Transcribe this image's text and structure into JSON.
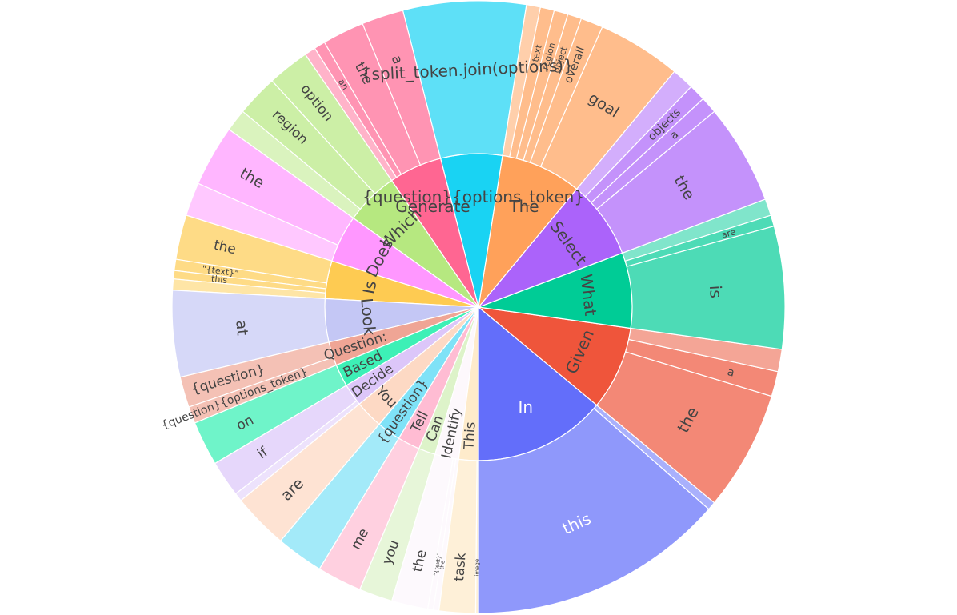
{
  "chart_data": {
    "type": "sunburst",
    "title": "",
    "inner": [
      {
        "label": "In",
        "value": 9.5,
        "color": "#636EFA",
        "text": "#ffffff",
        "children": [
          {
            "label": "this",
            "value": 9.2,
            "color": "#8F98FB"
          },
          {
            "label": "",
            "value": 0.3,
            "color": "#A9B0FC"
          }
        ]
      },
      {
        "label": "Given",
        "value": 6.0,
        "color": "#EF553B",
        "children": [
          {
            "label": "the",
            "value": 4.3,
            "color": "#F38876"
          },
          {
            "label": "a",
            "value": 0.9,
            "color": "#F38876"
          },
          {
            "label": "",
            "value": 0.8,
            "color": "#F4A596"
          }
        ]
      },
      {
        "label": "What",
        "value": 5.4,
        "color": "#00CC96",
        "children": [
          {
            "label": "is",
            "value": 4.4,
            "color": "#4DDBB6"
          },
          {
            "label": "are",
            "value": 0.4,
            "color": "#4DDBB6"
          },
          {
            "label": "",
            "value": 0.6,
            "color": "#80E5CB"
          }
        ]
      },
      {
        "label": "Select",
        "value": 5.6,
        "color": "#AB63FA",
        "children": [
          {
            "label": "the",
            "value": 3.6,
            "color": "#C492FB"
          },
          {
            "label": "a",
            "value": 0.6,
            "color": "#C492FB"
          },
          {
            "label": "objects",
            "value": 0.6,
            "color": "#C492FB"
          },
          {
            "label": "",
            "value": 0.8,
            "color": "#D3AEFC"
          }
        ]
      },
      {
        "label": "The",
        "value": 5.8,
        "color": "#FFA15A",
        "children": [
          {
            "label": "goal",
            "value": 3.0,
            "color": "#FFBD8C"
          },
          {
            "label": "overall",
            "value": 0.8,
            "color": "#FFBD8C"
          },
          {
            "label": "object",
            "value": 0.5,
            "color": "#FFBD8C"
          },
          {
            "label": "region",
            "value": 0.5,
            "color": "#FFBD8C"
          },
          {
            "label": "text",
            "value": 0.5,
            "color": "#FFBD8C"
          },
          {
            "label": "",
            "value": 0.5,
            "color": "#FFCFAB"
          }
        ]
      },
      {
        "label": "{question}{options_token}",
        "value": 4.4,
        "color": "#19D3F3",
        "children": [
          {
            "label": "{split_token.join(options)}",
            "value": 4.4,
            "color": "#5EE0F7"
          }
        ]
      },
      {
        "label": "Generate",
        "value": 3.8,
        "color": "#FF6692",
        "children": [
          {
            "label": "a",
            "value": 1.5,
            "color": "#FF94B3"
          },
          {
            "label": "the",
            "value": 1.5,
            "color": "#FF94B3"
          },
          {
            "label": "an",
            "value": 0.4,
            "color": "#FF94B3"
          },
          {
            "label": "",
            "value": 0.4,
            "color": "#FFB3C9"
          }
        ]
      },
      {
        "label": "Which",
        "value": 3.8,
        "color": "#B6E880",
        "children": [
          {
            "label": "option",
            "value": 1.5,
            "color": "#CCEFA6"
          },
          {
            "label": "region",
            "value": 1.5,
            "color": "#CCEFA6"
          },
          {
            "label": "",
            "value": 0.8,
            "color": "#DAF3BE"
          }
        ]
      },
      {
        "label": "Does",
        "value": 3.4,
        "color": "#FF97FF",
        "children": [
          {
            "label": "the",
            "value": 2.2,
            "color": "#FFB6FF"
          },
          {
            "label": "",
            "value": 1.2,
            "color": "#FFC8FF"
          }
        ]
      },
      {
        "label": "Is",
        "value": 2.7,
        "color": "#FECB52",
        "children": [
          {
            "label": "the",
            "value": 1.6,
            "color": "#FEDB86"
          },
          {
            "label": "\"{text}\"",
            "value": 0.4,
            "color": "#FEDB86"
          },
          {
            "label": "this",
            "value": 0.3,
            "color": "#FEDB86"
          },
          {
            "label": "",
            "value": 0.4,
            "color": "#FEE5A6"
          }
        ]
      },
      {
        "label": "Look",
        "value": 3.1,
        "color": "#C4C7F5",
        "children": [
          {
            "label": "at",
            "value": 3.1,
            "color": "#D6D8F8"
          }
        ]
      },
      {
        "label": "Question:",
        "value": 1.7,
        "color": "#EFA595",
        "children": [
          {
            "label": "{question}",
            "value": 1.1,
            "color": "#F4C1B5"
          },
          {
            "label": "{question}{options_token}",
            "value": 0.6,
            "color": "#F4C1B5"
          }
        ]
      },
      {
        "label": "Based",
        "value": 1.6,
        "color": "#3DF0B6",
        "children": [
          {
            "label": "on",
            "value": 1.6,
            "color": "#6FF4C9"
          }
        ]
      },
      {
        "label": "Decide",
        "value": 1.6,
        "color": "#DCC6F9",
        "children": [
          {
            "label": "if",
            "value": 1.3,
            "color": "#E6D7FB"
          },
          {
            "label": "",
            "value": 0.3,
            "color": "#EDE2FC"
          }
        ]
      },
      {
        "label": "You",
        "value": 2.0,
        "color": "#FDD9C4",
        "children": [
          {
            "label": "are",
            "value": 2.0,
            "color": "#FEE3D3"
          }
        ]
      },
      {
        "label": "{question}",
        "value": 1.7,
        "color": "#7FE2F7",
        "children": [
          {
            "label": "",
            "value": 1.7,
            "color": "#A3EAF9"
          }
        ]
      },
      {
        "label": "Tell",
        "value": 1.6,
        "color": "#FFBCD3",
        "children": [
          {
            "label": "me",
            "value": 1.6,
            "color": "#FFD0E0"
          }
        ]
      },
      {
        "label": "Can",
        "value": 1.2,
        "color": "#DDF3C9",
        "children": [
          {
            "label": "you",
            "value": 1.2,
            "color": "#E7F6D9"
          }
        ]
      },
      {
        "label": "Identify",
        "value": 1.7,
        "color": "#FDF8FC",
        "children": [
          {
            "label": "the",
            "value": 1.3,
            "color": "#FDF9FD"
          },
          {
            "label": "\"{text}\"",
            "value": 0.2,
            "color": "#FDF9FD"
          },
          {
            "label": "the",
            "value": 0.2,
            "color": "#FDF9FD"
          }
        ]
      },
      {
        "label": "This",
        "value": 1.4,
        "color": "#FEEBCB",
        "children": [
          {
            "label": "task",
            "value": 1.3,
            "color": "#FEF0D8"
          },
          {
            "label": "image",
            "value": 0.1,
            "color": "#FEF0D8"
          }
        ]
      }
    ]
  }
}
